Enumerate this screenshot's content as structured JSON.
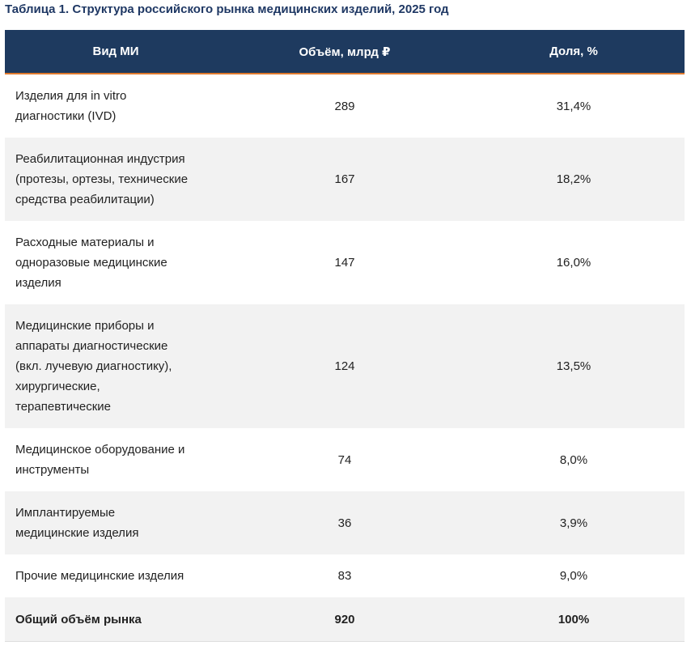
{
  "title": "Таблица 1. Структура российского рынка медицинских изделий, 2025 год",
  "table": {
    "columns": [
      "Вид МИ",
      "Объём, млрд ₽",
      "Доля, %"
    ],
    "rows": [
      [
        "Изделия для in vitro\nдиагностики (IVD)",
        "289",
        "31,4%"
      ],
      [
        "Реабилитационная индустрия\n(протезы, ортезы, технические\nсредства реабилитации)",
        "167",
        "18,2%"
      ],
      [
        "Расходные материалы и\nодноразовые медицинские\nизделия",
        "147",
        "16,0%"
      ],
      [
        "Медицинские приборы и\nаппараты диагностические\n(вкл. лучевую диагностику),\nхирургические,\nтерапевтические",
        "124",
        "13,5%"
      ],
      [
        "Медицинское оборудование и\nинструменты",
        "74",
        "8,0%"
      ],
      [
        "Имплантируемые\nмедицинские изделия",
        "36",
        "3,9%"
      ],
      [
        "Прочие медицинские изделия",
        "83",
        "9,0%"
      ]
    ],
    "total": [
      "Общий объём рынка",
      "920",
      "100%"
    ]
  }
}
